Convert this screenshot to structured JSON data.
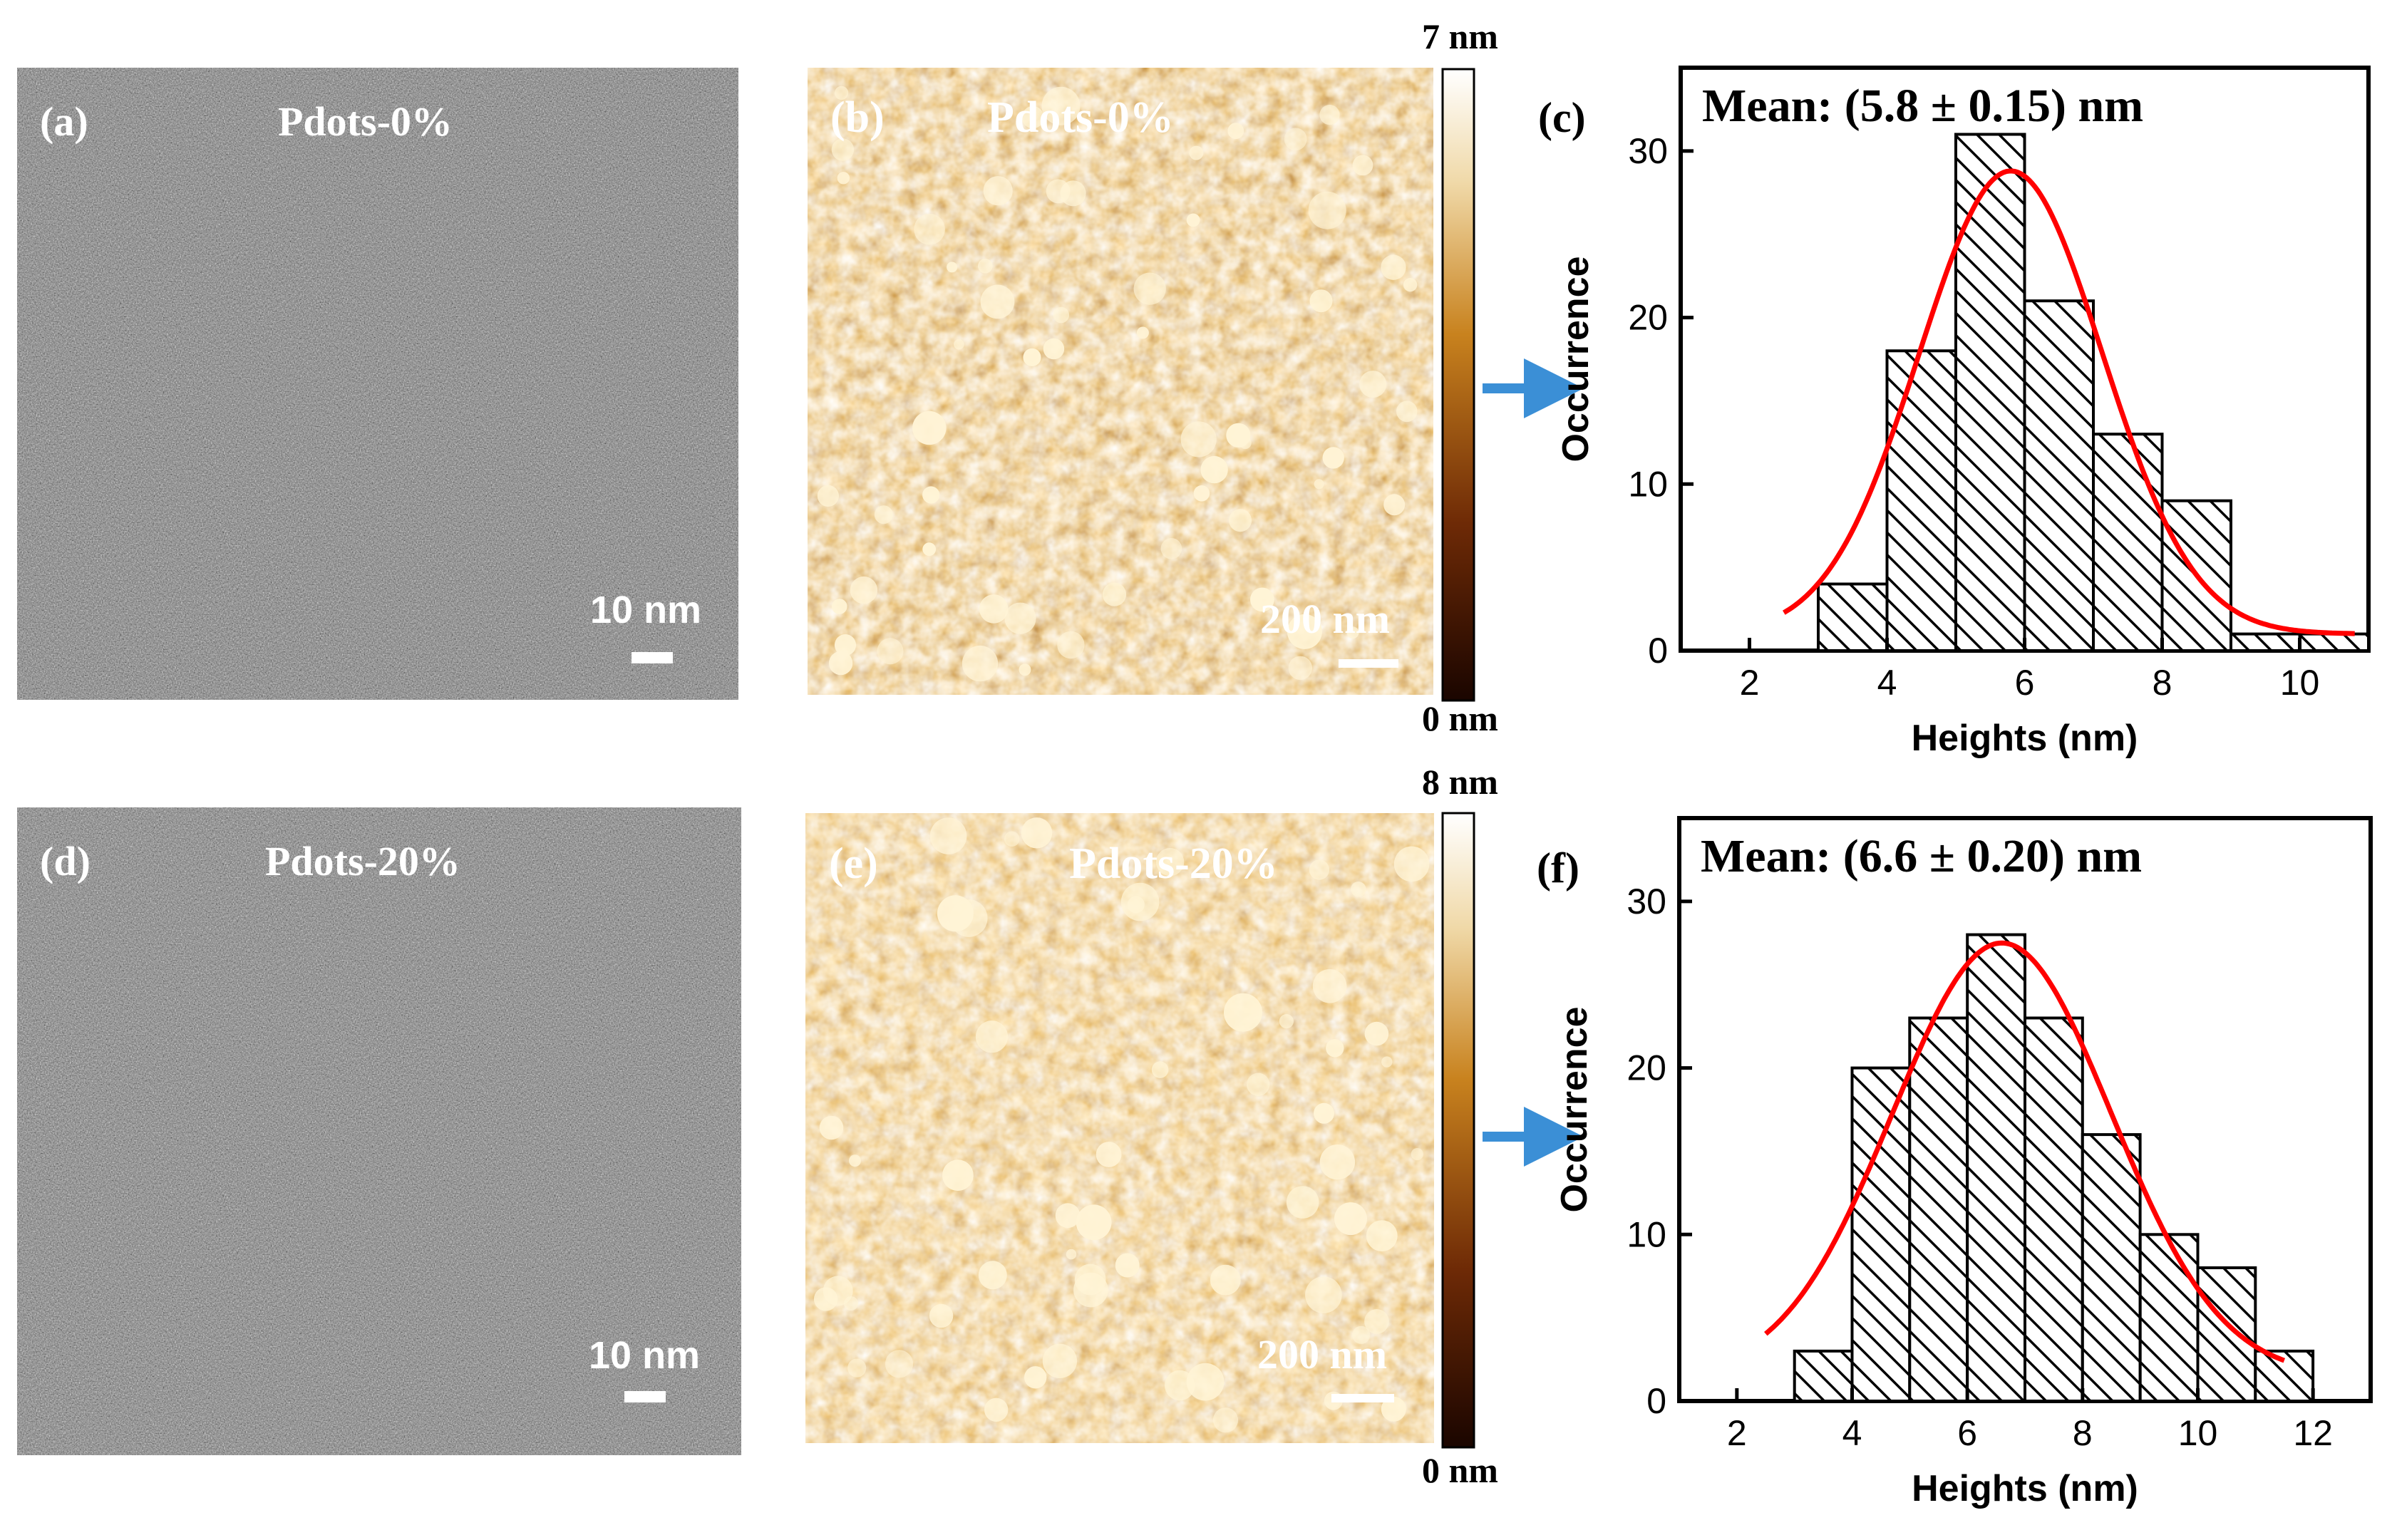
{
  "panels": {
    "a": {
      "label": "(a)",
      "title": "Pdots-0%",
      "scale_label": "10 nm"
    },
    "b": {
      "label": "(b)",
      "title": "Pdots-0%",
      "scale_label": "200 nm",
      "cbar_max": "7 nm",
      "cbar_min": "0 nm"
    },
    "d": {
      "label": "(d)",
      "title": "Pdots-20%",
      "scale_label": "10 nm"
    },
    "e": {
      "label": "(e)",
      "title": "Pdots-20%",
      "scale_label": "200 nm",
      "cbar_max": "8 nm",
      "cbar_min": "0 nm"
    }
  },
  "colors": {
    "bar_fill": "#ffffff",
    "bar_stroke": "#000000",
    "fit_curve": "#ff0000",
    "arrow": "#3b8fd6",
    "afm_light": "#fff6dc",
    "afm_mid": "#c8781e",
    "afm_dark": "#2a0c02"
  },
  "chart_data": [
    {
      "type": "bar",
      "panel_label": "(c)",
      "title": "Mean: (5.8 ± 0.15) nm",
      "xlabel": "Heights (nm)",
      "ylabel": "Occurrence",
      "xlim": [
        1,
        11
      ],
      "ylim": [
        0,
        35
      ],
      "xticks": [
        2,
        4,
        6,
        8,
        10
      ],
      "yticks": [
        0,
        10,
        20,
        30
      ],
      "bin_width": 1,
      "categories": [
        3.5,
        4.5,
        5.5,
        6.5,
        7.5,
        8.5,
        9.5,
        10.5
      ],
      "values": [
        4,
        18,
        31,
        21,
        13,
        9,
        1,
        1
      ],
      "fit": {
        "type": "gaussian",
        "mean": 5.8,
        "sigma": 1.33,
        "amplitude": 27.8,
        "baseline": 1.0,
        "x_range": [
          2.5,
          10.8
        ]
      },
      "hatch": "diagonal"
    },
    {
      "type": "bar",
      "panel_label": "(f)",
      "title": "Mean: (6.6 ± 0.20) nm",
      "xlabel": "Heights (nm)",
      "ylabel": "Occurrence",
      "xlim": [
        1,
        13
      ],
      "ylim": [
        0,
        35
      ],
      "xticks": [
        2,
        4,
        6,
        8,
        10,
        12
      ],
      "yticks": [
        0,
        10,
        20,
        30
      ],
      "bin_width": 1,
      "categories": [
        3.5,
        4.5,
        5.5,
        6.5,
        7.5,
        8.5,
        9.5,
        10.5,
        11.5
      ],
      "values": [
        3,
        20,
        23,
        28,
        23,
        16,
        10,
        8,
        3
      ],
      "fit": {
        "type": "gaussian",
        "mean": 6.6,
        "sigma": 1.9,
        "amplitude": 26.0,
        "baseline": 1.5,
        "x_range": [
          2.5,
          11.5
        ]
      },
      "hatch": "diagonal"
    }
  ]
}
